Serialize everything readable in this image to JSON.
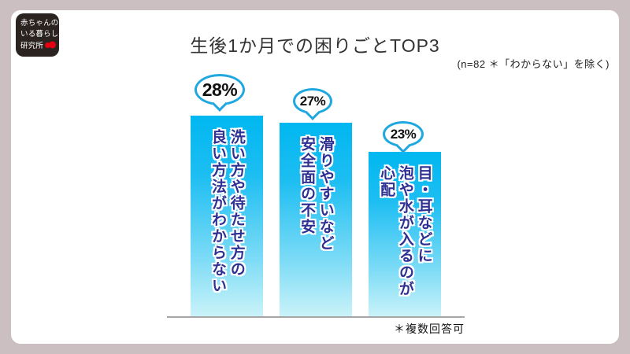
{
  "logo": {
    "line1": "赤ちゃんの",
    "line2": "いる暮らし",
    "line3": "研究所",
    "mark_color": "#e60012",
    "bg_color": "#2b2320"
  },
  "header": {
    "title": "生後1か月での困りごとTOP3",
    "sample_note": "(n=82 ＊「わからない」を除く)"
  },
  "chart_data": {
    "type": "bar",
    "title": "生後1か月での困りごとTOP3",
    "sample_size": 82,
    "categories": [
      "洗い方や待たせ方の良い方法がわからない",
      "滑りやすいなど安全面の不安",
      "目・耳などに泡や水が入るのが心配"
    ],
    "categories_display": [
      "洗い方や待たせ方の\n良い方法がわからない",
      "滑りやすいなど\n安全面の不安",
      "目・耳などに\n泡や水が入るのが\n心配"
    ],
    "values": [
      28,
      27,
      23
    ],
    "value_labels": [
      "28%",
      "27%",
      "23%"
    ],
    "unit": "%",
    "ylim": [
      0,
      30
    ],
    "orientation": "vertical",
    "grid": false,
    "legend": false,
    "colors": {
      "bar_top": "#00b7f0",
      "bar_bottom": "#cbf3f9",
      "bubble_border": "#1fa8e0",
      "bar_label_text": "#2e3192",
      "axis_line": "#a6a6a6",
      "frame": "#ccbfc2"
    },
    "note": "＊複数回答可"
  },
  "footer": {
    "note": "＊複数回答可"
  }
}
